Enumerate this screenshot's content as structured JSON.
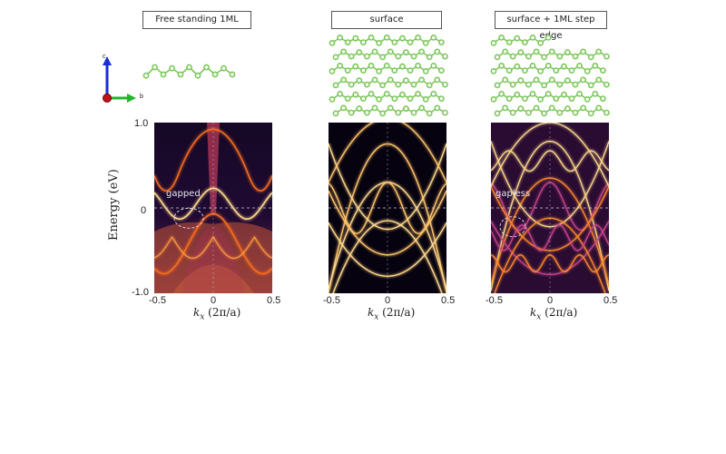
{
  "panels": [
    {
      "title": "Free standing 1ML",
      "annotation": "gapped"
    },
    {
      "title": "surface",
      "annotation": ""
    },
    {
      "title": "surface + 1ML step edge",
      "annotation": "gapless"
    }
  ],
  "axes": {
    "y_label": "Energy (eV)",
    "y_ticks": [
      "1.0",
      "0",
      "-1.0"
    ],
    "x_ticks": [
      "-0.5",
      "0",
      "0.5"
    ],
    "x_label_main": "k",
    "x_label_sub": "x",
    "x_label_unit": "(2π/a)"
  },
  "coordinate_axes": {
    "c": "c",
    "b": "b"
  },
  "colors": {
    "band_bright": "#ffd98a",
    "band_mid": "#f26b1f",
    "background_dark": "#1a0b2a",
    "atom_green": "#7cc75a",
    "axis_c": "#1a2fd6",
    "axis_b": "#23b52b",
    "axis_a": "#c3121a"
  },
  "chart_data": [
    {
      "type": "heatmap",
      "title": "Free standing 1ML",
      "xlabel": "kx (2π/a)",
      "ylabel": "Energy (eV)",
      "xlim": [
        -0.5,
        0.5
      ],
      "ylim": [
        -1.0,
        1.0
      ],
      "annotation": "gapped"
    },
    {
      "type": "heatmap",
      "title": "surface",
      "xlabel": "kx (2π/a)",
      "ylabel": "",
      "xlim": [
        -0.5,
        0.5
      ],
      "ylim": [
        -1.0,
        1.0
      ]
    },
    {
      "type": "heatmap",
      "title": "surface + 1ML step edge",
      "xlabel": "kx (2π/a)",
      "ylabel": "",
      "xlim": [
        -0.5,
        0.5
      ],
      "ylim": [
        -1.0,
        1.0
      ],
      "annotation": "gapless"
    }
  ]
}
